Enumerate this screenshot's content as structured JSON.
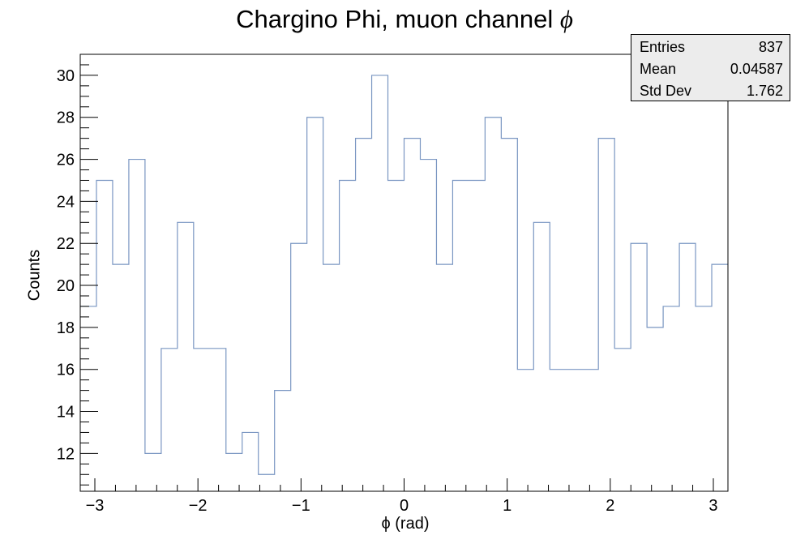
{
  "title": {
    "text": "Chargino Phi, muon channel",
    "symbol": "ϕ"
  },
  "stats": [
    {
      "label": "Entries",
      "value": "837"
    },
    {
      "label": "Mean",
      "value": "0.04587"
    },
    {
      "label": "Std Dev",
      "value": "1.762"
    }
  ],
  "colors": {
    "line": "#7a96c2",
    "axis": "#000000",
    "statbox_bg": "#ececec"
  },
  "chart_data": {
    "type": "histogram",
    "title": "Chargino Phi, muon channel ϕ",
    "xlabel": "ϕ (rad)",
    "ylabel": "Counts",
    "xlim": [
      -3.1416,
      3.1416
    ],
    "ylim": [
      10.2,
      31
    ],
    "bins": 40,
    "values": [
      19,
      25,
      21,
      26,
      12,
      17,
      23,
      17,
      17,
      12,
      13,
      11,
      15,
      22,
      28,
      21,
      25,
      27,
      30,
      25,
      27,
      26,
      21,
      25,
      25,
      28,
      27,
      16,
      23,
      16,
      16,
      16,
      27,
      17,
      22,
      18,
      19,
      22,
      19,
      21
    ],
    "x_ticks": [
      -3,
      -2,
      -1,
      0,
      1,
      2,
      3
    ],
    "x_tick_labels": [
      "−3",
      "−2",
      "−1",
      "0",
      "1",
      "2",
      "3"
    ],
    "y_ticks": [
      12,
      14,
      16,
      18,
      20,
      22,
      24,
      26,
      28,
      30
    ],
    "y_tick_labels": [
      "12",
      "14",
      "16",
      "18",
      "20",
      "22",
      "24",
      "26",
      "28",
      "30"
    ],
    "grid": false,
    "legend": "none"
  }
}
